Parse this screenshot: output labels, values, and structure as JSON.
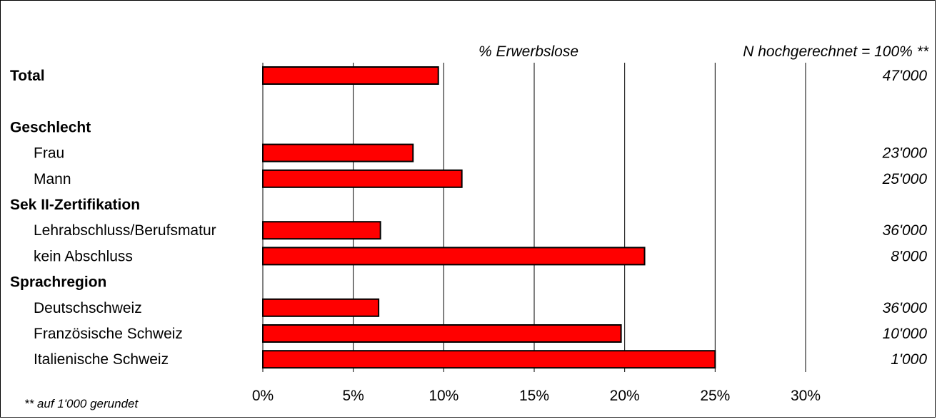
{
  "chart_data": {
    "type": "bar",
    "orientation": "horizontal",
    "title": "% Erwerbslose",
    "n_header": "N hochgerechnet = 100% **",
    "footnote": "** auf 1'000 gerundet",
    "xlim": [
      0,
      30
    ],
    "x_ticks": [
      "0%",
      "5%",
      "10%",
      "15%",
      "20%",
      "25%",
      "30%"
    ],
    "grid": true,
    "bar_color": "#ff0000",
    "rows": [
      {
        "label": "Total",
        "kind": "header",
        "value": 9.7,
        "n": "47'000"
      },
      {
        "label": "",
        "kind": "spacer"
      },
      {
        "label": "Geschlecht",
        "kind": "header"
      },
      {
        "label": "Frau",
        "kind": "item",
        "value": 8.3,
        "n": "23'000"
      },
      {
        "label": "Mann",
        "kind": "item",
        "value": 11.0,
        "n": "25'000"
      },
      {
        "label": "Sek II-Zertifikation",
        "kind": "header"
      },
      {
        "label": "Lehrabschluss/Berufsmatur",
        "kind": "item",
        "value": 6.5,
        "n": "36'000"
      },
      {
        "label": "kein Abschluss",
        "kind": "item",
        "value": 21.1,
        "n": "8'000"
      },
      {
        "label": "Sprachregion",
        "kind": "header"
      },
      {
        "label": "Deutschschweiz",
        "kind": "item",
        "value": 6.4,
        "n": "36'000"
      },
      {
        "label": "Französische Schweiz",
        "kind": "item",
        "value": 19.8,
        "n": "10'000"
      },
      {
        "label": "Italienische Schweiz",
        "kind": "item",
        "value": 25.0,
        "n": "1'000"
      }
    ]
  }
}
